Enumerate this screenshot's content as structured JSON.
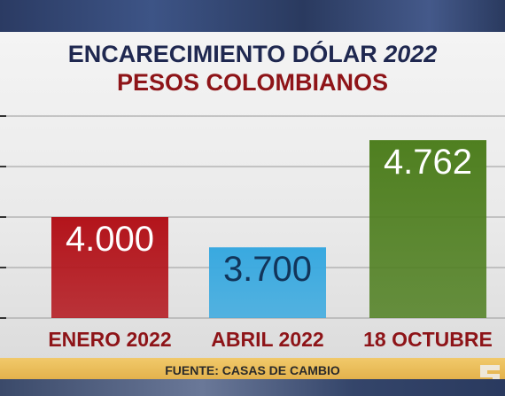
{
  "header": {
    "title_prefix": "ENCARECIMIENTO DÓLAR",
    "title_year": "2022",
    "subtitle": "PESOS COLOMBIANOS"
  },
  "source": {
    "text": "FUENTE: CASAS DE CAMBIO"
  },
  "chart_data": {
    "type": "bar",
    "categories": [
      "ENERO 2022",
      "ABRIL 2022",
      "18 OCTUBRE"
    ],
    "values": [
      4000,
      3700,
      4762
    ],
    "data_labels": [
      "4.000",
      "3.700",
      "4.762"
    ],
    "ylim": [
      3000,
      5000
    ],
    "grid": true,
    "title": "ENCARECIMIENTO DÓLAR 2022",
    "subtitle": "PESOS COLOMBIANOS",
    "xlabel": "",
    "ylabel": "",
    "colors": {
      "bars": [
        "#b3141b",
        "#39a9e0",
        "#4f7f20"
      ],
      "labels": [
        "#ffffff",
        "#12355a",
        "#ffffff"
      ],
      "category_text": "#8e1418",
      "grid": "#9a9a9a"
    }
  }
}
